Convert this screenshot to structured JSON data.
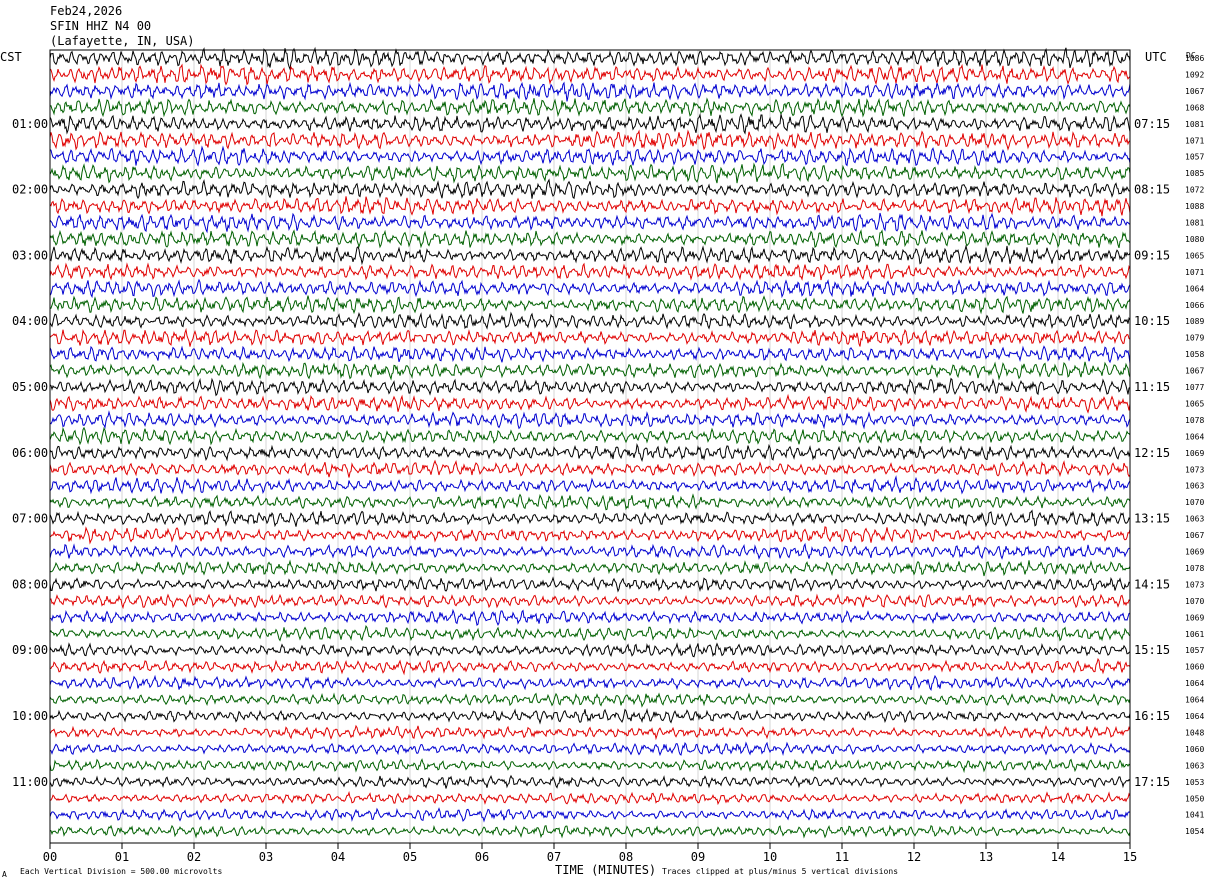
{
  "header": {
    "date": "Feb24,2026",
    "station": "SFIN HHZ N4 00",
    "location": "(Lafayette, IN, USA)"
  },
  "left_tz": "CST",
  "right_tz": "UTC",
  "right_col_label": "DC",
  "footer": {
    "scale": "Each Vertical Division =  500.00 microvolts",
    "clipping": "Traces clipped at plus/minus 5 vertical divisions",
    "corner_mark": "A"
  },
  "colors": [
    "#000000",
    "#e00000",
    "#0000d0",
    "#006000"
  ],
  "chart_data": {
    "type": "line",
    "xlabel": "TIME (MINUTES)",
    "xlim": [
      0,
      15
    ],
    "x_ticks": [
      "00",
      "01",
      "02",
      "03",
      "04",
      "05",
      "06",
      "07",
      "08",
      "09",
      "10",
      "11",
      "12",
      "13",
      "14",
      "15"
    ],
    "traces_per_hour": 4,
    "trace_minutes": 15,
    "left_hour_labels": [
      "01:00",
      "02:00",
      "03:00",
      "04:00",
      "05:00",
      "06:00",
      "07:00",
      "08:00",
      "09:00",
      "10:00",
      "11:00"
    ],
    "right_hour_labels": [
      "07:15",
      "08:15",
      "09:15",
      "10:15",
      "11:15",
      "12:15",
      "13:15",
      "14:15",
      "15:15",
      "16:15",
      "17:15"
    ],
    "dc_offsets": [
      "1086",
      "1092",
      "1067",
      "1068",
      "1081",
      "1071",
      "1057",
      "1085",
      "1072",
      "1088",
      "1081",
      "1080",
      "1065",
      "1071",
      "1064",
      "1066",
      "1089",
      "1079",
      "1058",
      "1067",
      "1077",
      "1065",
      "1078",
      "1064",
      "1069",
      "1073",
      "1063",
      "1070",
      "1063",
      "1067",
      "1069",
      "1078",
      "1073",
      "1070",
      "1069",
      "1061",
      "1057",
      "1060",
      "1064",
      "1064",
      "1064",
      "1048",
      "1060",
      "1063",
      "1053",
      "1050",
      "1041",
      "1054"
    ]
  }
}
